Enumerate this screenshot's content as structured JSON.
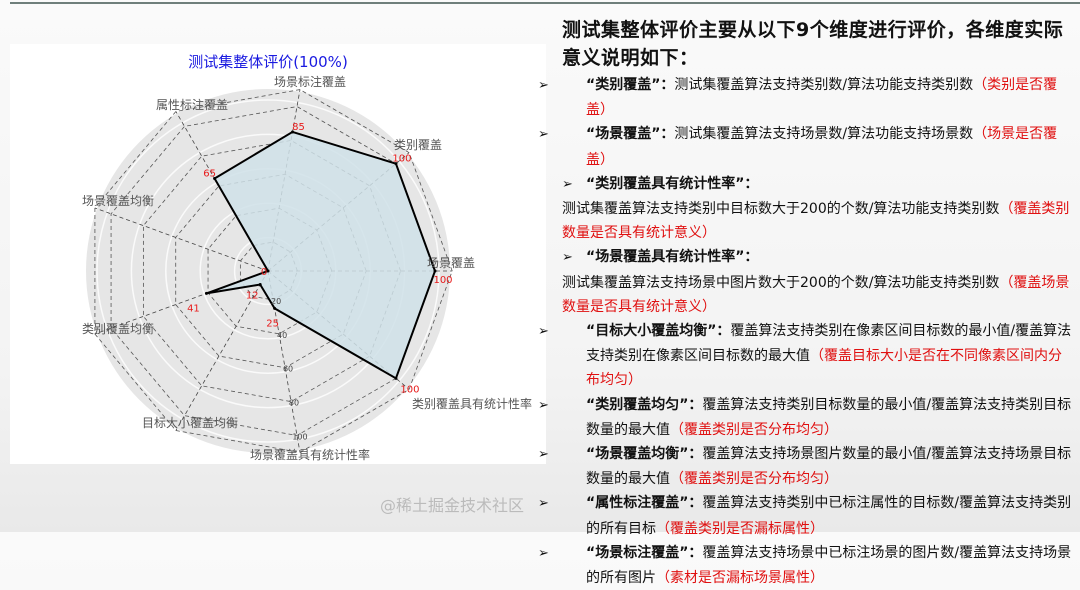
{
  "chart_data": {
    "type": "radar",
    "title": "测试集整体评价(100%)",
    "axes": [
      "场景覆盖",
      "类别覆盖",
      "场景标注覆盖",
      "属性标注覆盖",
      "场景覆盖均衡",
      "类别覆盖均衡",
      "目标大小覆盖均衡",
      "场景覆盖具有统计性率",
      "类别覆盖具有统计性率"
    ],
    "values": [
      100,
      100,
      85,
      65,
      0,
      41,
      12,
      25,
      100
    ],
    "value_labels": [
      "100",
      "100",
      "85",
      "65",
      "0",
      "41",
      "12",
      "25",
      "100"
    ],
    "radial_ticks": [
      "20",
      "40",
      "60",
      "80",
      "100"
    ],
    "range": [
      0,
      100
    ],
    "grid": true,
    "fill_color": "#cfe1e8",
    "line_color": "#000000",
    "label_color": "#e81a1a",
    "title_color": "#1a1ae0"
  },
  "right": {
    "heading": "测试集整体评价主要从以下9个维度进行评价，各维度实际意义说明如下：",
    "bullet": "➢",
    "items": [
      {
        "title": "“类别覆盖”：",
        "desc": "测试集覆盖算法支持类别数/算法功能支持类别数",
        "note": "（类别是否覆盖）"
      },
      {
        "title": "“场景覆盖”：",
        "desc": "测试集覆盖算法支持场景数/算法功能支持场景数",
        "note": "（场景是否覆盖）"
      },
      {
        "title": "“类别覆盖具有统计性率”：",
        "desc": "测试集覆盖算法支持类别中目标数大于200的个数/算法功能支持类别数",
        "note": "（覆盖类别数量是否具有统计意义）"
      },
      {
        "title": "“场景覆盖具有统计性率”：",
        "desc": "测试集覆盖算法支持场景中图片数大于200的个数/算法功能支持类别数",
        "note": "（覆盖场景数量是否具有统计意义）"
      },
      {
        "title": "“目标大小覆盖均衡”：",
        "desc": "覆盖算法支持类别在像素区间目标数的最小值/覆盖算法支持类别在像素区间目标数的最大值",
        "note": "（覆盖目标大小是否在不同像素区间内分布均匀）"
      },
      {
        "title": "“类别覆盖均匀”：",
        "desc": "覆盖算法支持类别目标数量的最小值/覆盖算法支持类别目标数量的最大值",
        "note": "（覆盖类别是否分布均匀）"
      },
      {
        "title": "“场景覆盖均衡”：",
        "desc": "覆盖算法支持场景图片数量的最小值/覆盖算法支持场景目标数量的最大值",
        "note": "（覆盖类别是否分布均匀）"
      },
      {
        "title": "“属性标注覆盖”：",
        "desc": "覆盖算法支持类别中已标注属性的目标数/覆盖算法支持类别的所有目标",
        "note": "（覆盖类别是否漏标属性）"
      },
      {
        "title": "“场景标注覆盖”：",
        "desc": "覆盖算法支持场景中已标注场景的图片数/覆盖算法支持场景的所有图片",
        "note": "（素材是否漏标场景属性）"
      }
    ]
  },
  "watermark": "@稀土掘金技术社区"
}
